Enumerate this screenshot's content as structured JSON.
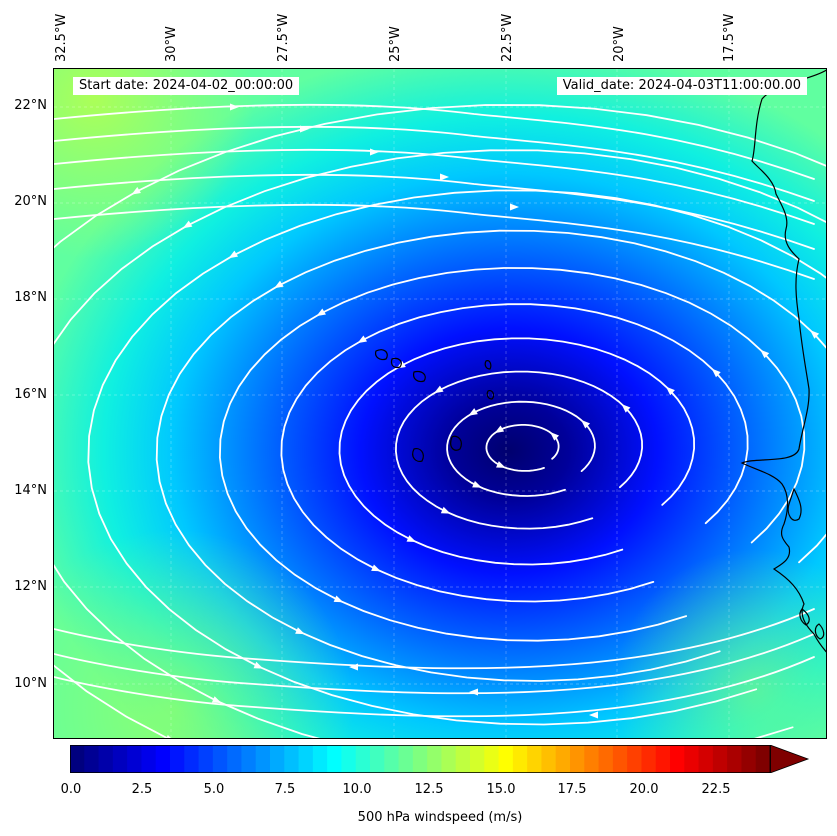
{
  "map": {
    "start_date": "Start date: 2024-04-02_00:00:00",
    "valid_date": "Valid_date: 2024-04-03T11:00:00.00",
    "longitude_labels": [
      "32.5°W",
      "30°W",
      "27.5°W",
      "25°W",
      "22.5°W",
      "20°W",
      "17.5°W"
    ],
    "latitude_labels": [
      "22°N",
      "20°N",
      "18°N",
      "16°N",
      "14°N",
      "12°N",
      "10°N"
    ],
    "field_colors": {
      "calm_core": "#00007a",
      "inner": "#0000ff",
      "mid": "#1e7dff",
      "outer": "#00ffff",
      "edge": "#7fff80"
    },
    "streamline_color": "#ffffff",
    "coastline_color": "#000000"
  },
  "colorbar": {
    "label": "500 hPa windspeed (m/s)",
    "ticks": [
      "0.0",
      "2.5",
      "5.0",
      "7.5",
      "10.0",
      "12.5",
      "15.0",
      "17.5",
      "20.0",
      "22.5"
    ],
    "range": [
      0,
      25
    ],
    "extend": "max",
    "colormap": [
      "#00007f",
      "#0000ff",
      "#007fff",
      "#00ffff",
      "#7fff7f",
      "#ffff00",
      "#ff7f00",
      "#ff0000",
      "#7f0000"
    ]
  }
}
